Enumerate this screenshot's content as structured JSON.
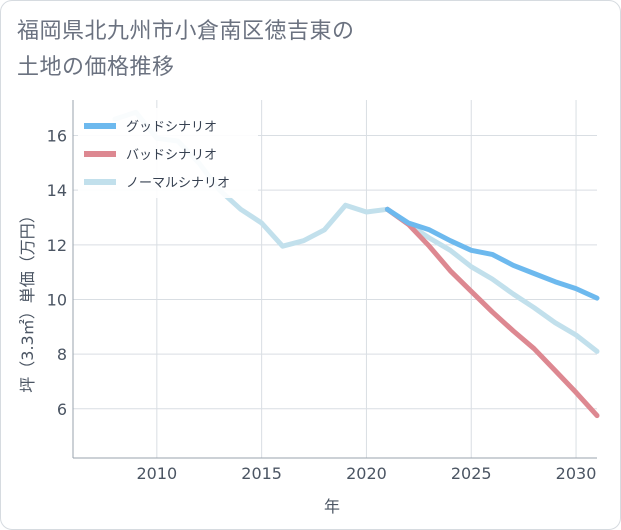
{
  "chart_data": {
    "type": "line",
    "title": "福岡県北九州市小倉南区徳吉東の\n土地の価格推移",
    "xlabel": "年",
    "ylabel": "坪（3.3㎡）単価（万円）",
    "xlim": [
      2006,
      2031
    ],
    "ylim": [
      4.2,
      17.3
    ],
    "xticks": [
      "2010",
      "2015",
      "2020",
      "2025",
      "2030"
    ],
    "yticks": [
      "6",
      "8",
      "10",
      "12",
      "14",
      "16"
    ],
    "grid": true,
    "legend_position": "top-left",
    "series": [
      {
        "name": "グッドシナリオ",
        "color": "#6db9ee",
        "x": [
          2021,
          2022,
          2023,
          2024,
          2025,
          2026,
          2027,
          2028,
          2029,
          2030,
          2031
        ],
        "y": [
          13.3,
          12.8,
          12.55,
          12.15,
          11.8,
          11.65,
          11.25,
          10.95,
          10.65,
          10.4,
          10.05
        ]
      },
      {
        "name": "バッドシナリオ",
        "color": "#dd8891",
        "x": [
          2021,
          2022,
          2023,
          2024,
          2025,
          2026,
          2027,
          2028,
          2029,
          2030,
          2031
        ],
        "y": [
          13.3,
          12.75,
          11.95,
          11.05,
          10.3,
          9.55,
          8.85,
          8.2,
          7.4,
          6.6,
          5.75
        ]
      },
      {
        "name": "ノーマルシナリオ",
        "color": "#c2e0ec",
        "x": [
          2008,
          2009,
          2010,
          2011,
          2012,
          2013,
          2014,
          2015,
          2016,
          2017,
          2018,
          2019,
          2020,
          2021,
          2022,
          2023,
          2024,
          2025,
          2026,
          2027,
          2028,
          2029,
          2030,
          2031
        ],
        "y": [
          16.6,
          16.85,
          15.9,
          15.8,
          15.0,
          14.0,
          13.3,
          12.8,
          11.95,
          12.15,
          12.55,
          13.45,
          13.2,
          13.3,
          12.75,
          12.25,
          11.8,
          11.2,
          10.75,
          10.2,
          9.7,
          9.15,
          8.7,
          8.1
        ]
      }
    ]
  }
}
